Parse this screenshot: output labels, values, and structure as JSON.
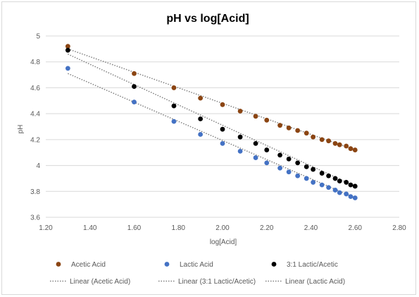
{
  "chart_data": {
    "type": "scatter",
    "title": "pH vs log[Acid]",
    "xlabel": "log[Acid]",
    "ylabel": "pH",
    "xlim": [
      1.2,
      2.8
    ],
    "ylim": [
      3.6,
      5.0
    ],
    "x_ticks": [
      "1.20",
      "1.40",
      "1.60",
      "1.80",
      "2.00",
      "2.20",
      "2.40",
      "2.60",
      "2.80"
    ],
    "y_ticks": [
      "3.6",
      "3.8",
      "4",
      "4.2",
      "4.4",
      "4.6",
      "4.8",
      "5"
    ],
    "grid": "horizontal",
    "legend_position": "bottom",
    "series": [
      {
        "name": "Acetic Acid",
        "color": "#8B4513",
        "x": [
          1.3,
          1.6,
          1.78,
          1.9,
          2.0,
          2.08,
          2.15,
          2.2,
          2.26,
          2.3,
          2.34,
          2.38,
          2.41,
          2.45,
          2.48,
          2.51,
          2.53,
          2.56,
          2.58,
          2.6
        ],
        "y": [
          4.92,
          4.71,
          4.6,
          4.52,
          4.47,
          4.42,
          4.38,
          4.35,
          4.31,
          4.29,
          4.27,
          4.25,
          4.22,
          4.2,
          4.19,
          4.17,
          4.16,
          4.15,
          4.13,
          4.12
        ]
      },
      {
        "name": "Lactic Acid",
        "color": "#4472C4",
        "x": [
          1.3,
          1.6,
          1.78,
          1.9,
          2.0,
          2.08,
          2.15,
          2.2,
          2.26,
          2.3,
          2.34,
          2.38,
          2.41,
          2.45,
          2.48,
          2.51,
          2.53,
          2.56,
          2.58,
          2.6
        ],
        "y": [
          4.75,
          4.49,
          4.34,
          4.24,
          4.17,
          4.11,
          4.06,
          4.02,
          3.98,
          3.95,
          3.92,
          3.9,
          3.87,
          3.85,
          3.83,
          3.81,
          3.79,
          3.78,
          3.76,
          3.75
        ]
      },
      {
        "name": "3:1 Lactic/Acetic",
        "color": "#000000",
        "x": [
          1.3,
          1.6,
          1.78,
          1.9,
          2.0,
          2.08,
          2.15,
          2.2,
          2.26,
          2.3,
          2.34,
          2.38,
          2.41,
          2.45,
          2.48,
          2.51,
          2.53,
          2.56,
          2.58,
          2.6
        ],
        "y": [
          4.89,
          4.61,
          4.46,
          4.36,
          4.28,
          4.22,
          4.17,
          4.12,
          4.08,
          4.05,
          4.02,
          3.99,
          3.97,
          3.94,
          3.92,
          3.9,
          3.88,
          3.87,
          3.85,
          3.84
        ]
      }
    ],
    "trendlines": [
      {
        "name": "Linear (Acetic Acid)",
        "series": "Acetic Acid",
        "x": [
          1.3,
          2.6
        ],
        "y": [
          4.9,
          4.12
        ],
        "color": "#808080"
      },
      {
        "name": "Linear (3:1 Lactic/Acetic)",
        "series": "3:1 Lactic/Acetic",
        "x": [
          1.3,
          2.6
        ],
        "y": [
          4.86,
          3.84
        ],
        "color": "#808080"
      },
      {
        "name": "Linear (Lactic Acid)",
        "series": "Lactic Acid",
        "x": [
          1.3,
          2.6
        ],
        "y": [
          4.71,
          3.75
        ],
        "color": "#808080"
      }
    ],
    "legend": [
      {
        "label": "Acetic Acid",
        "kind": "marker",
        "color": "#8B4513"
      },
      {
        "label": "Lactic Acid",
        "kind": "marker",
        "color": "#4472C4"
      },
      {
        "label": "3:1 Lactic/Acetic",
        "kind": "marker",
        "color": "#000000"
      },
      {
        "label": "Linear (Acetic Acid)",
        "kind": "line",
        "color": "#808080"
      },
      {
        "label": "Linear (3:1 Lactic/Acetic)",
        "kind": "line",
        "color": "#808080"
      },
      {
        "label": "Linear (Lactic Acid)",
        "kind": "line",
        "color": "#808080"
      }
    ]
  }
}
